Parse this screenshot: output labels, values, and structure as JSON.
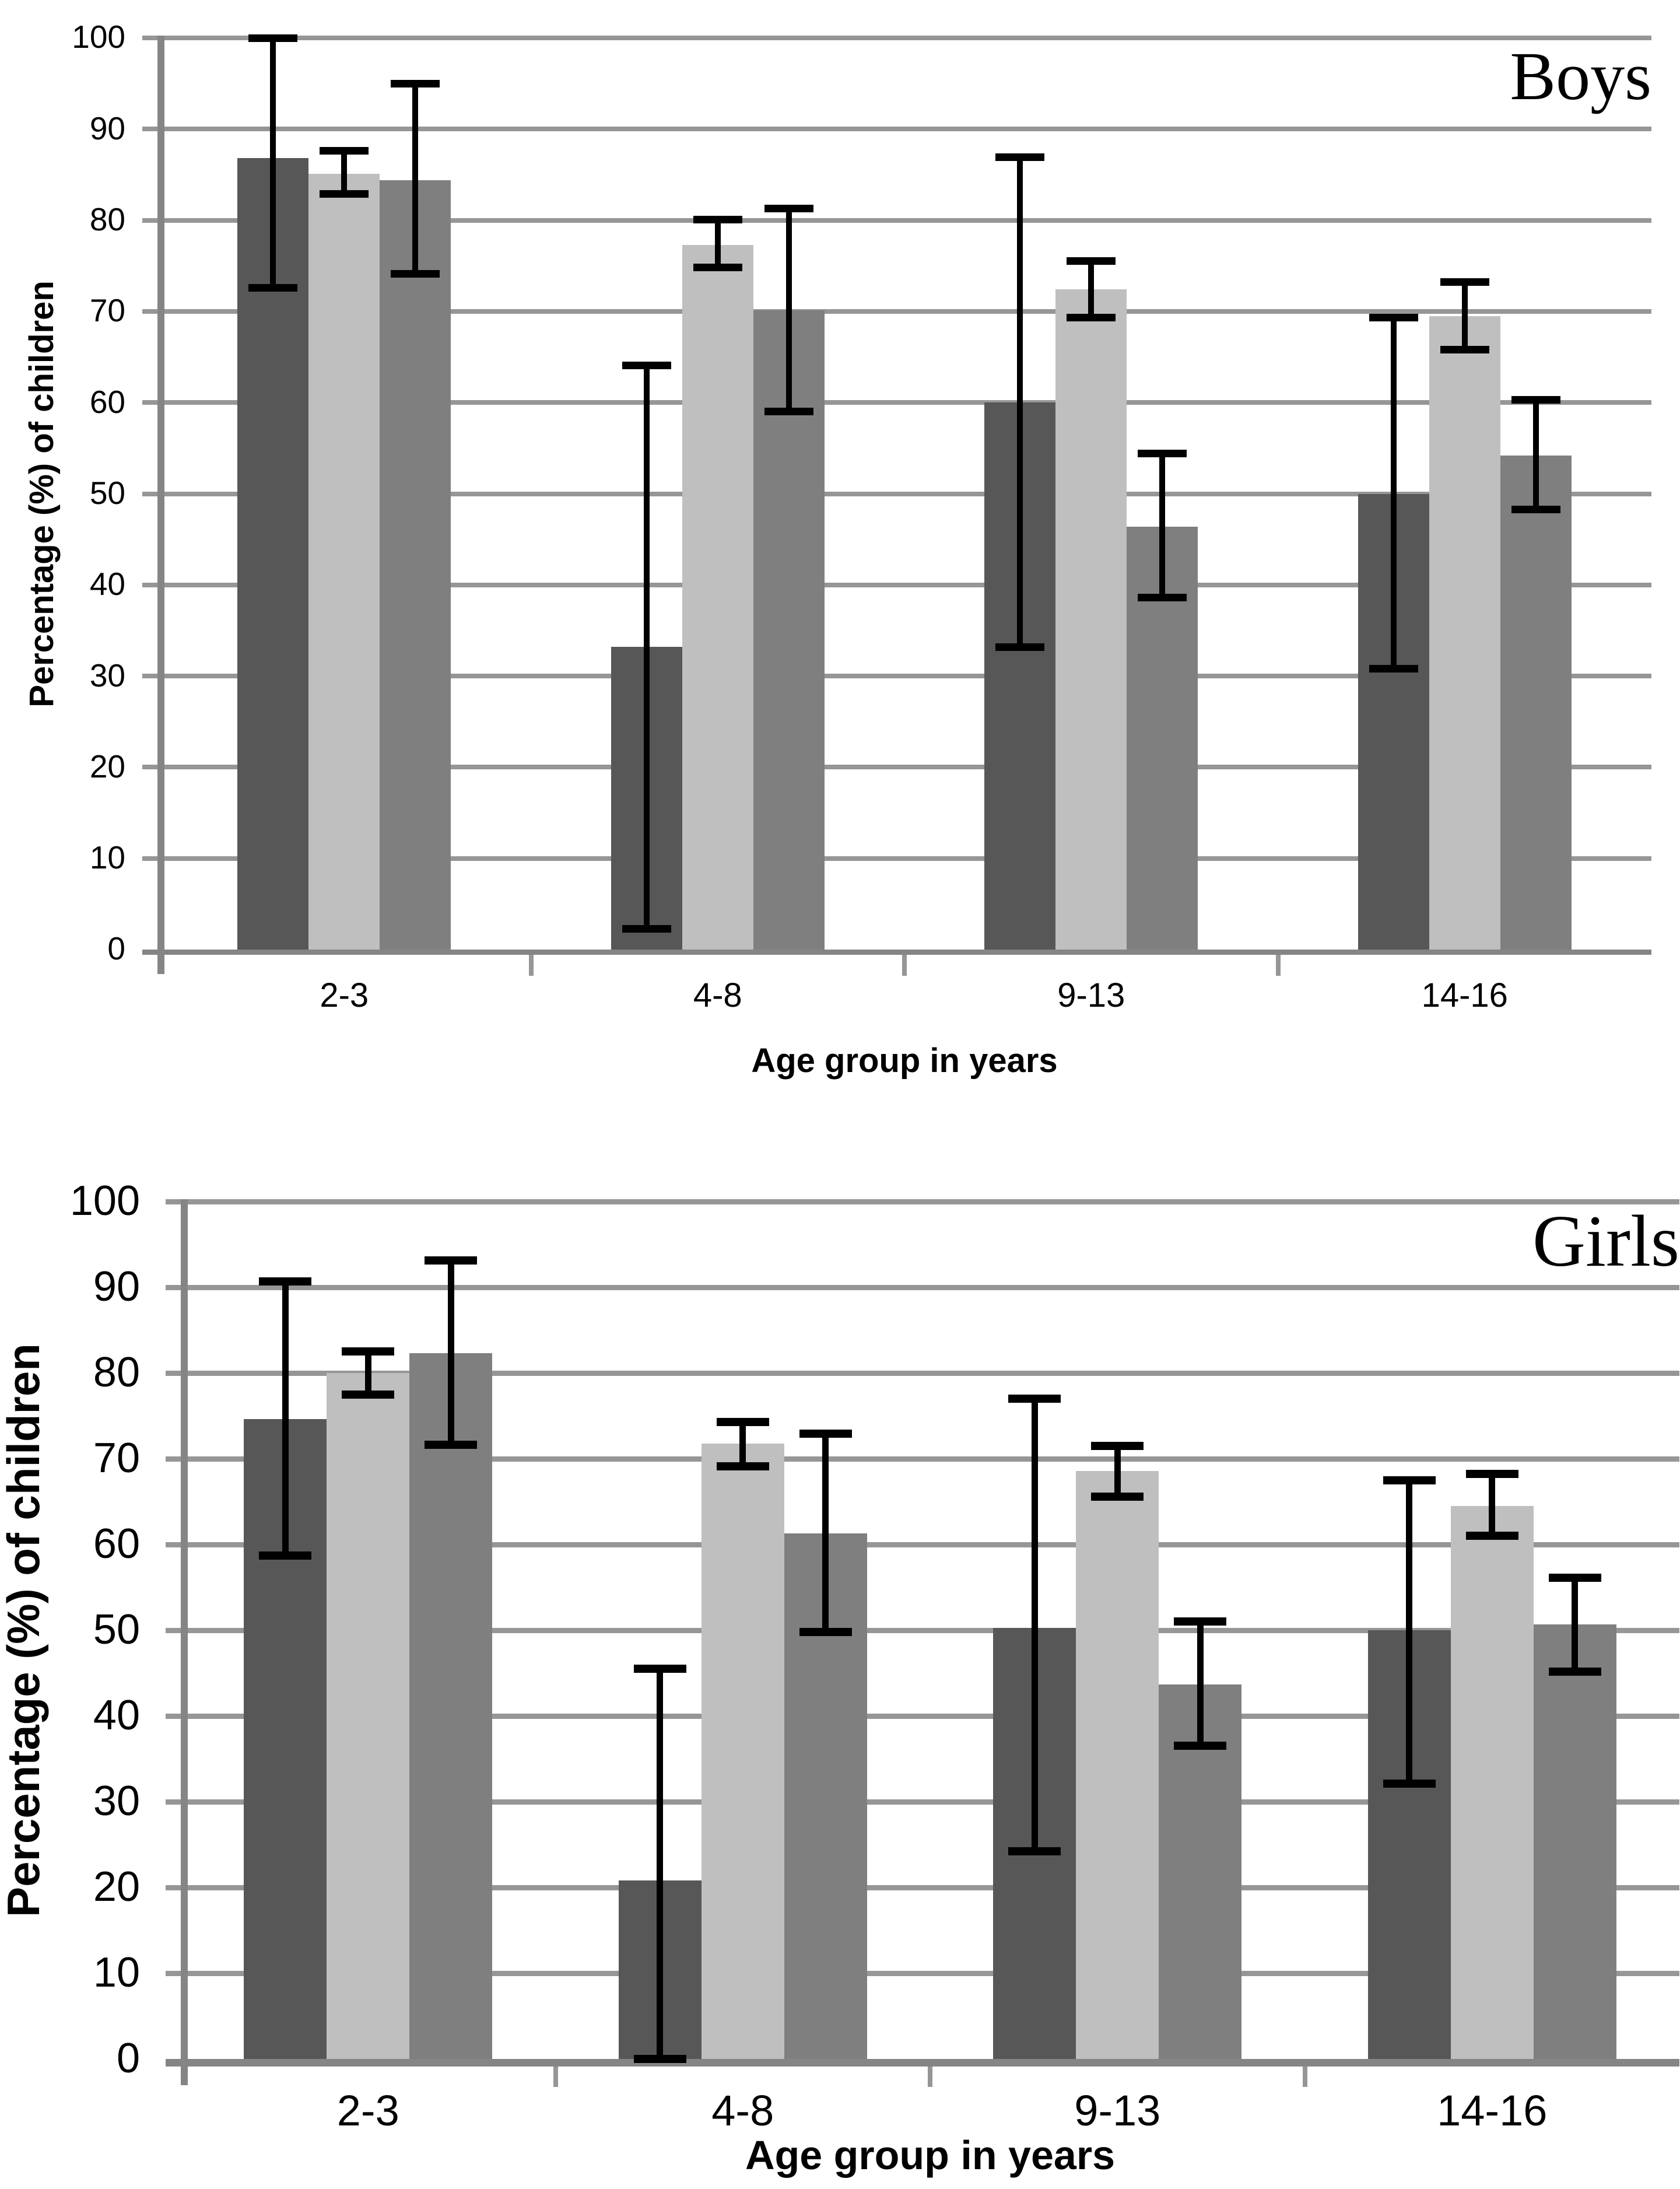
{
  "figure": {
    "background": "#ffffff",
    "panel_count": 2
  },
  "colors": {
    "gridline": "#969696",
    "axis": "#858585",
    "error_bar": "#000000",
    "bar_dark": "#575757",
    "bar_light": "#bfbfbf",
    "bar_medium": "#7f7f7f",
    "text": "#000000"
  },
  "chart_data": [
    {
      "type": "bar",
      "panel_label": "Boys",
      "xlabel": "Age group in years",
      "ylabel": "Percentage (%) of children",
      "categories": [
        "2-3",
        "4-8",
        "9-13",
        "14-16"
      ],
      "ylim": [
        0,
        100
      ],
      "yticks": [
        0,
        10,
        20,
        30,
        40,
        50,
        60,
        70,
        80,
        90,
        100
      ],
      "grid": true,
      "legend": "none",
      "error_bars": true,
      "series": [
        {
          "name": "dark-gray",
          "color": "#575757",
          "values": [
            86.8,
            33.2,
            60.0,
            50.0
          ],
          "error_low": [
            72.6,
            2.3,
            33.2,
            30.8
          ],
          "error_high": [
            100.0,
            64.1,
            86.9,
            69.3
          ]
        },
        {
          "name": "light-gray",
          "color": "#bfbfbf",
          "values": [
            85.1,
            77.3,
            72.4,
            69.5
          ],
          "error_low": [
            82.9,
            74.8,
            69.3,
            65.8
          ],
          "error_high": [
            87.6,
            80.1,
            75.5,
            73.2
          ]
        },
        {
          "name": "medium-gray",
          "color": "#7f7f7f",
          "values": [
            84.4,
            70.1,
            46.4,
            54.2
          ],
          "error_low": [
            74.1,
            59.0,
            38.6,
            48.3
          ],
          "error_high": [
            95.0,
            81.3,
            54.4,
            60.3
          ]
        }
      ]
    },
    {
      "type": "bar",
      "panel_label": "Girls",
      "xlabel": "Age group in years",
      "ylabel": "Percentage (%) of children",
      "categories": [
        "2-3",
        "4-8",
        "9-13",
        "14-16"
      ],
      "ylim": [
        0,
        100
      ],
      "yticks": [
        0,
        10,
        20,
        30,
        40,
        50,
        60,
        70,
        80,
        90,
        100
      ],
      "grid": true,
      "legend": "none",
      "error_bars": true,
      "series": [
        {
          "name": "dark-gray",
          "color": "#575757",
          "values": [
            74.6,
            20.8,
            50.3,
            50.0
          ],
          "error_low": [
            58.7,
            0.0,
            24.2,
            32.1
          ],
          "error_high": [
            90.7,
            45.5,
            77.0,
            67.5
          ]
        },
        {
          "name": "light-gray",
          "color": "#bfbfbf",
          "values": [
            80.0,
            71.8,
            68.6,
            64.5
          ],
          "error_low": [
            77.5,
            69.1,
            65.6,
            61.0
          ],
          "error_high": [
            82.5,
            74.3,
            71.5,
            68.2
          ]
        },
        {
          "name": "medium-gray",
          "color": "#7f7f7f",
          "values": [
            82.3,
            61.3,
            43.7,
            50.7
          ],
          "error_low": [
            71.6,
            49.8,
            36.5,
            45.2
          ],
          "error_high": [
            93.1,
            72.9,
            51.0,
            56.1
          ]
        }
      ]
    }
  ]
}
